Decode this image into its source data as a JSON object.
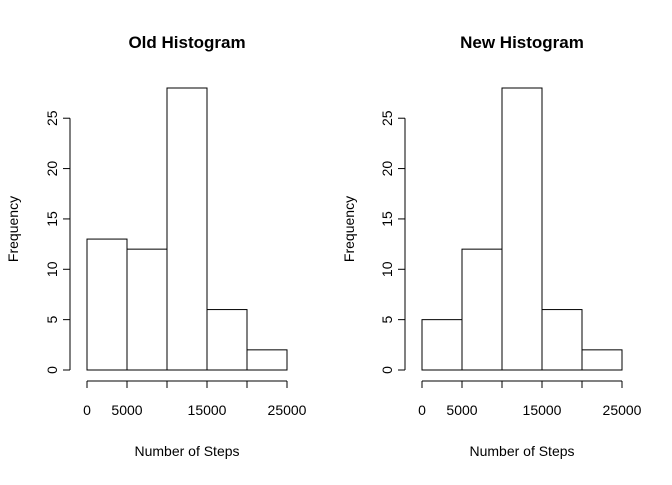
{
  "chart_data": [
    {
      "type": "bar",
      "title": "Old Histogram",
      "xlabel": "Number of Steps",
      "ylabel": "Frequency",
      "bins": [
        {
          "from": 0,
          "to": 5000,
          "count": 13
        },
        {
          "from": 5000,
          "to": 10000,
          "count": 12
        },
        {
          "from": 10000,
          "to": 15000,
          "count": 28
        },
        {
          "from": 15000,
          "to": 20000,
          "count": 6
        },
        {
          "from": 20000,
          "to": 25000,
          "count": 2
        }
      ],
      "xlim": [
        0,
        25000
      ],
      "ylim": [
        0,
        28
      ],
      "x_ticks": [
        0,
        5000,
        15000,
        25000
      ],
      "x_tick_marks": [
        0,
        5000,
        10000,
        15000,
        20000,
        25000
      ],
      "y_ticks": [
        0,
        5,
        10,
        15,
        20,
        25
      ],
      "grid": false
    },
    {
      "type": "bar",
      "title": "New Histogram",
      "xlabel": "Number of Steps",
      "ylabel": "Frequency",
      "bins": [
        {
          "from": 0,
          "to": 5000,
          "count": 5
        },
        {
          "from": 5000,
          "to": 10000,
          "count": 12
        },
        {
          "from": 10000,
          "to": 15000,
          "count": 28
        },
        {
          "from": 15000,
          "to": 20000,
          "count": 6
        },
        {
          "from": 20000,
          "to": 25000,
          "count": 2
        }
      ],
      "xlim": [
        0,
        25000
      ],
      "ylim": [
        0,
        28
      ],
      "x_ticks": [
        0,
        5000,
        15000,
        25000
      ],
      "x_tick_marks": [
        0,
        5000,
        10000,
        15000,
        20000,
        25000
      ],
      "y_ticks": [
        0,
        5,
        10,
        15,
        20,
        25
      ],
      "grid": false
    }
  ]
}
